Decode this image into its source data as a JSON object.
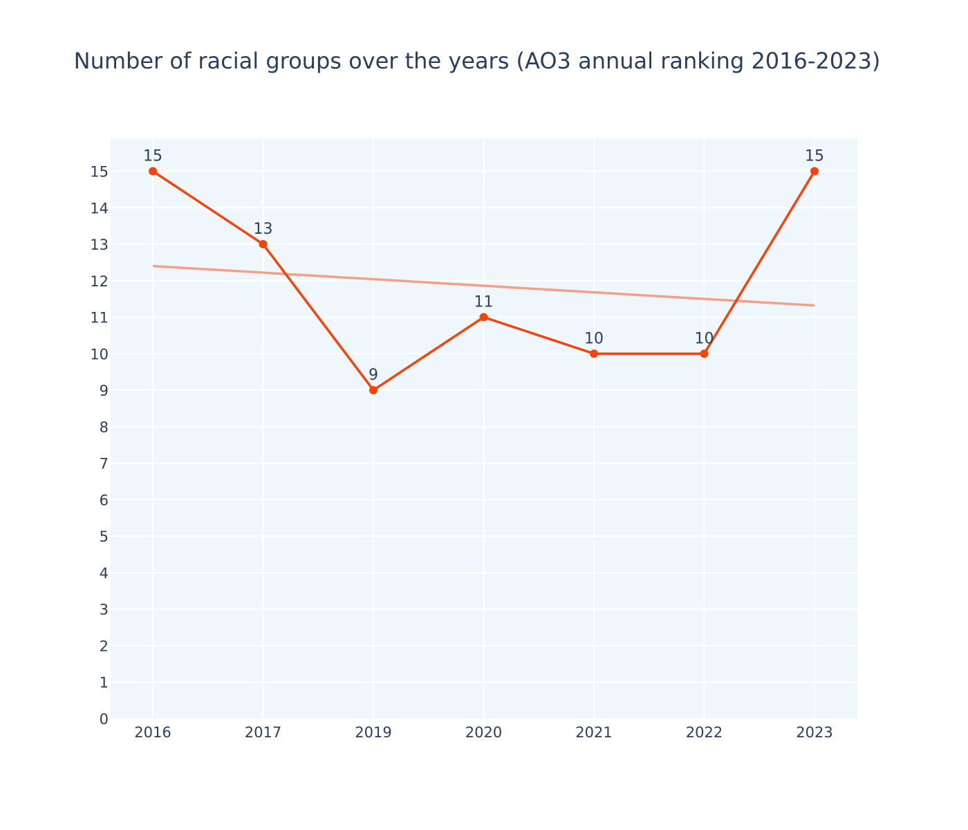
{
  "chart_data": {
    "type": "line",
    "title": "Number of racial groups over the years (AO3 annual ranking 2016-2023)",
    "xlabel": "",
    "ylabel": "",
    "categories": [
      "2016",
      "2017",
      "2019",
      "2020",
      "2021",
      "2022",
      "2023"
    ],
    "series": [
      {
        "values": [
          15,
          13,
          9,
          11,
          10,
          10,
          15
        ],
        "color": "#f4440c",
        "mode": "lines+markers+text",
        "data_labels": [
          "15",
          "13",
          "9",
          "11",
          "10",
          "10",
          "15"
        ]
      },
      {
        "kind": "trendline",
        "values": [
          12.4,
          12.22,
          12.04,
          11.86,
          11.68,
          11.5,
          11.32
        ],
        "color": "#f4a088"
      }
    ],
    "ylim": [
      0,
      15.9
    ],
    "yticks": [
      "0",
      "1",
      "2",
      "3",
      "4",
      "5",
      "6",
      "7",
      "8",
      "9",
      "10",
      "11",
      "12",
      "13",
      "14",
      "15"
    ],
    "grid": true,
    "legend": "none",
    "plot_background": "#eff7fd",
    "grid_color": "#ffffff"
  }
}
